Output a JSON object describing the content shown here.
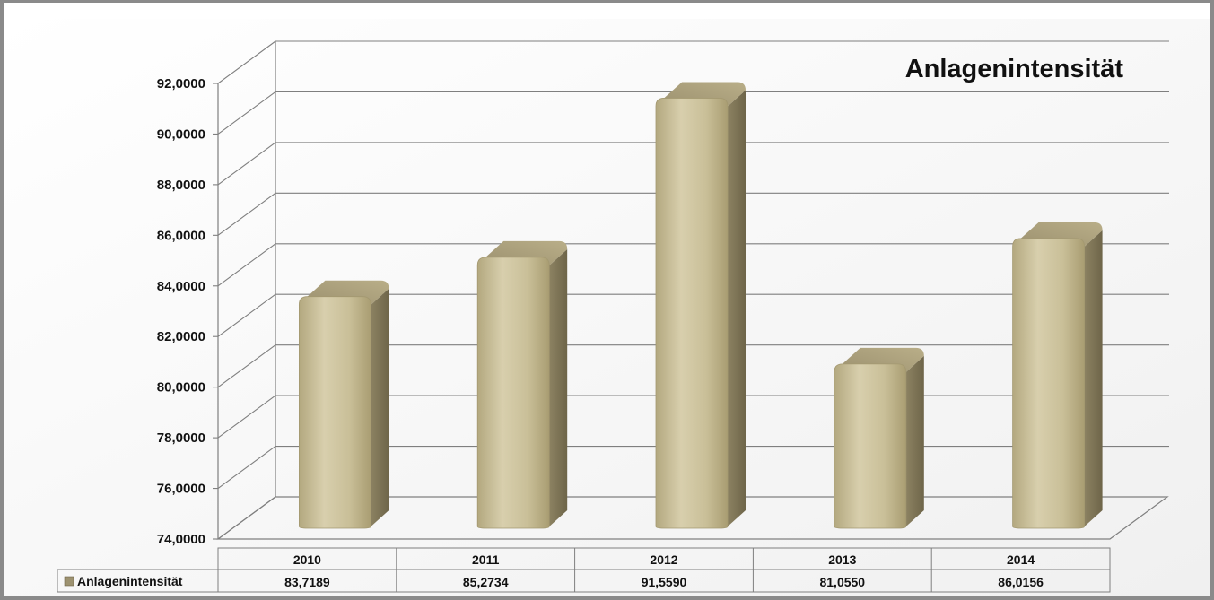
{
  "chart_data": {
    "type": "bar",
    "title": "Anlagenintensität",
    "categories": [
      "2010",
      "2011",
      "2012",
      "2013",
      "2014"
    ],
    "series": [
      {
        "name": "Anlagenintensität",
        "values": [
          83.7189,
          85.2734,
          91.559,
          81.055,
          86.0156
        ]
      }
    ],
    "value_labels": [
      "83,7189",
      "85,2734",
      "91,5590",
      "81,0550",
      "86,0156"
    ],
    "ylim": [
      74,
      92
    ],
    "yticks": [
      "74,0000",
      "76,0000",
      "78,0000",
      "80,0000",
      "82,0000",
      "84,0000",
      "86,0000",
      "88,0000",
      "90,0000",
      "92,0000"
    ],
    "grid": true,
    "legend": "data-table",
    "bar_color": "#c8be9a"
  }
}
